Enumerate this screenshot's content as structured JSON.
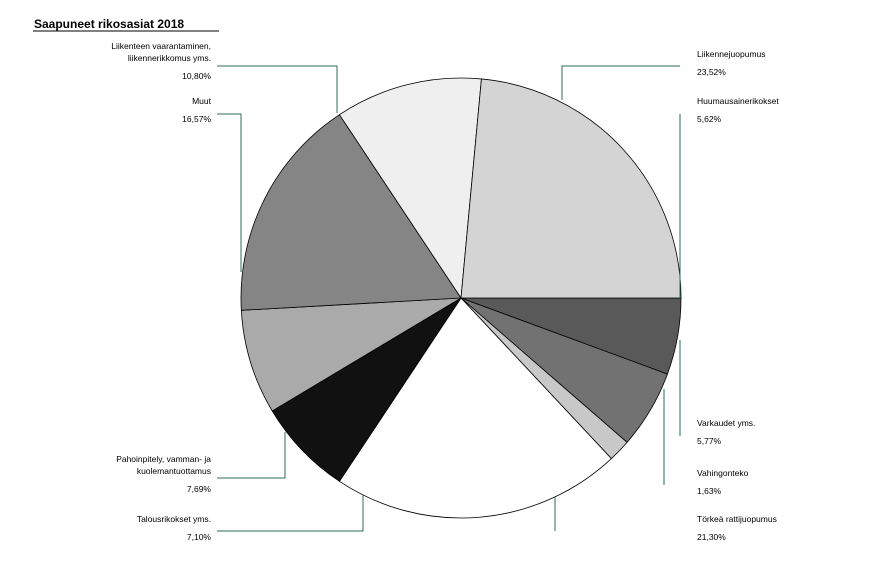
{
  "chart_data": {
    "type": "pie",
    "title": "Saapuneet rikosasiat  2018",
    "start_angle_deg": 0,
    "direction": "clockwise",
    "slices": [
      {
        "label": [
          "Huumausainerikokset"
        ],
        "value": 5.62,
        "display": "5,62%",
        "color": "#595959"
      },
      {
        "label": [
          "Varkaudet yms."
        ],
        "value": 5.77,
        "display": "5,77%",
        "color": "#727272"
      },
      {
        "label": [
          "Vahingonteko"
        ],
        "value": 1.63,
        "display": "1,63%",
        "color": "#c8c8c8"
      },
      {
        "label": [
          "Törkeä rattijuopumus"
        ],
        "value": 21.3,
        "display": "21,30%",
        "color": "#ffffff"
      },
      {
        "label": [
          "Talousrikokset yms."
        ],
        "value": 7.1,
        "display": "7,10%",
        "color": "#111111"
      },
      {
        "label": [
          "Pahoinpitely, vamman- ja",
          "kuolemantuottamus"
        ],
        "value": 7.69,
        "display": "7,69%",
        "color": "#aaaaaa"
      },
      {
        "label": [
          "Muut"
        ],
        "value": 16.57,
        "display": "16,57%",
        "color": "#858585"
      },
      {
        "label": [
          "Liikenteen vaarantaminen,",
          "liikennerikkomus yms."
        ],
        "value": 10.8,
        "display": "10,80%",
        "color": "#efefef"
      },
      {
        "label": [
          "Liikennejuopumus"
        ],
        "value": 23.52,
        "display": "23,52%",
        "color": "#d4d4d4"
      }
    ]
  }
}
